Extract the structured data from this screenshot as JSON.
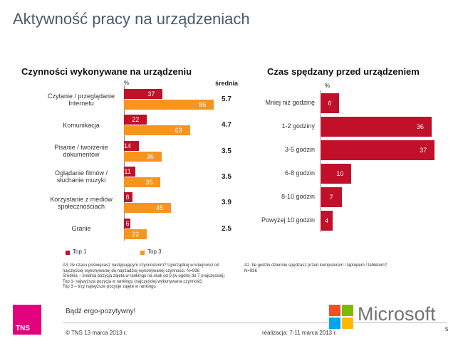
{
  "title": "Aktywność pracy na urządzeniach",
  "chart_data": [
    {
      "type": "bar",
      "orientation": "horizontal",
      "title": "Czynności wykonywane na urządzeniu",
      "unit_label": "%",
      "categories": [
        "Czytanie / przeglądanie Internetu",
        "Komunikacja",
        "Pisanie / tworzenie dokumentów",
        "Oglądanie filmów / słuchanie muzyki",
        "Korzystanie z mediów społecznościach",
        "Granie"
      ],
      "series": [
        {
          "name": "Top 1",
          "color": "#c0102a",
          "values": [
            37,
            22,
            14,
            11,
            8,
            6
          ]
        },
        {
          "name": "Top 3",
          "color": "#f7941d",
          "values": [
            86,
            63,
            36,
            35,
            45,
            22
          ]
        }
      ],
      "averages_label": "średnia",
      "averages": [
        5.7,
        4.7,
        3.5,
        3.5,
        3.9,
        2.5
      ],
      "legend": "bottom"
    },
    {
      "type": "bar",
      "orientation": "horizontal",
      "title": "Czas spędzany przed urządzeniem",
      "unit_label": "%",
      "categories": [
        "Mniej niż godzinę",
        "1-2 godziny",
        "3-5 godzin",
        "6-8 godzin",
        "8-10 godzin",
        "Powyżej 10 godzin"
      ],
      "values": [
        6,
        36,
        37,
        10,
        7,
        4
      ],
      "color": "#c0102a"
    }
  ],
  "notes_left": [
    "A3. Ile czasu poświęcasz następującym czynnościom? Uporządkuj w kolejności od najczęściej wykonywanej do najrzadziej wykonywanej czynności.   N=936",
    "Średnia – średnia pozycja zajęta w rankingu na skali od 0 (w ogóle) do 7 (najczęściej)",
    "Top 1- najwyższa pozycja w rankingu (najczęściej wykonywana czynność)",
    "Top 3 – trzy najwyższe pozycje zajęte w rankingu"
  ],
  "notes_right": [
    "A2. Ile godzin dziennie spędzasz przed komputerem / laptopem / tabletem?",
    "N=936"
  ],
  "footer": {
    "logo": "TNS",
    "slogan": "Bądź ergo-pozytywny!",
    "brand": "Microsoft",
    "copyright": "© TNS   13 marca 2013 r.",
    "fieldwork": "realizacja: 7-11 marca 2013 r.",
    "page": "5"
  }
}
